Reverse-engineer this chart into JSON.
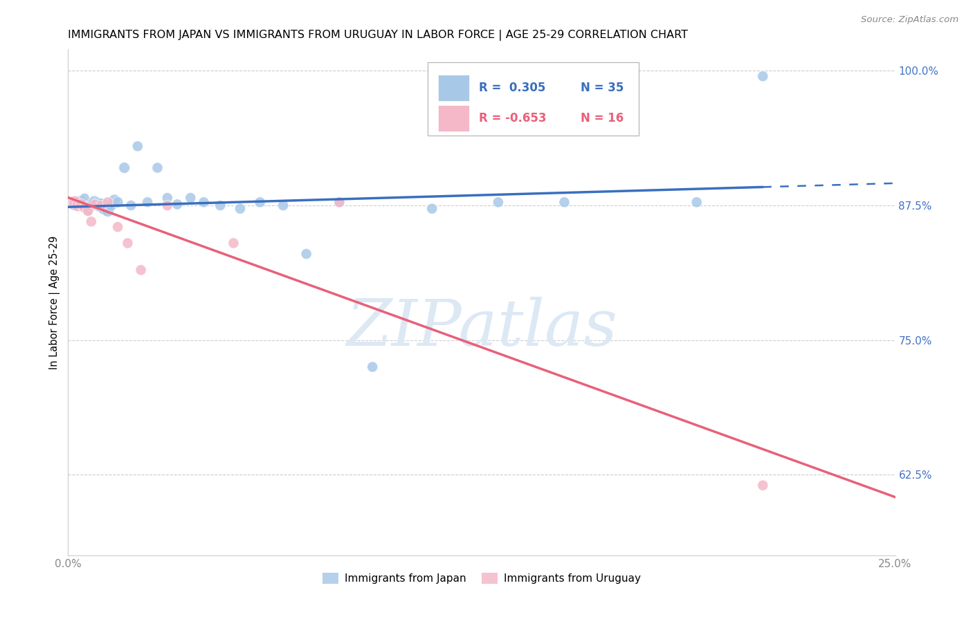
{
  "title": "IMMIGRANTS FROM JAPAN VS IMMIGRANTS FROM URUGUAY IN LABOR FORCE | AGE 25-29 CORRELATION CHART",
  "source_text": "Source: ZipAtlas.com",
  "ylabel": "In Labor Force | Age 25-29",
  "xlim": [
    0.0,
    0.25
  ],
  "ylim": [
    0.55,
    1.02
  ],
  "yticks": [
    0.625,
    0.75,
    0.875,
    1.0
  ],
  "ytick_labels": [
    "62.5%",
    "75.0%",
    "87.5%",
    "100.0%"
  ],
  "xtick_positions": [
    0.0,
    0.25
  ],
  "xtick_labels": [
    "0.0%",
    "25.0%"
  ],
  "watermark": "ZIPatlas",
  "japan_x": [
    0.002,
    0.003,
    0.004,
    0.005,
    0.006,
    0.007,
    0.008,
    0.009,
    0.01,
    0.011,
    0.012,
    0.013,
    0.014,
    0.015,
    0.017,
    0.019,
    0.021,
    0.024,
    0.027,
    0.03,
    0.033,
    0.037,
    0.041,
    0.046,
    0.052,
    0.058,
    0.065,
    0.072,
    0.082,
    0.092,
    0.11,
    0.13,
    0.15,
    0.19,
    0.21
  ],
  "japan_y": [
    0.875,
    0.878,
    0.88,
    0.882,
    0.87,
    0.875,
    0.878,
    0.876,
    0.875,
    0.872,
    0.87,
    0.875,
    0.88,
    0.878,
    0.91,
    0.875,
    0.93,
    0.878,
    0.91,
    0.882,
    0.876,
    0.882,
    0.878,
    0.875,
    0.872,
    0.878,
    0.875,
    0.83,
    0.878,
    0.725,
    0.872,
    0.878,
    0.878,
    0.878,
    0.995
  ],
  "japan_sizes": [
    120,
    100,
    100,
    100,
    120,
    150,
    180,
    200,
    220,
    180,
    160,
    140,
    140,
    130,
    130,
    120,
    120,
    120,
    120,
    120,
    120,
    120,
    120,
    120,
    120,
    120,
    120,
    120,
    120,
    120,
    120,
    120,
    120,
    120,
    120
  ],
  "uruguay_x": [
    0.002,
    0.003,
    0.004,
    0.005,
    0.006,
    0.007,
    0.008,
    0.01,
    0.012,
    0.015,
    0.018,
    0.022,
    0.03,
    0.05,
    0.082,
    0.21
  ],
  "uruguay_y": [
    0.878,
    0.875,
    0.876,
    0.873,
    0.87,
    0.86,
    0.876,
    0.875,
    0.878,
    0.855,
    0.84,
    0.815,
    0.875,
    0.84,
    0.878,
    0.615
  ],
  "uruguay_sizes": [
    180,
    160,
    140,
    130,
    120,
    120,
    120,
    120,
    120,
    120,
    120,
    120,
    120,
    120,
    120,
    120
  ],
  "japan_color": "#a8c8e8",
  "uruguay_color": "#f4b8c8",
  "japan_line_color": "#3a6fbf",
  "uruguay_line_color": "#e8607a",
  "background_color": "#ffffff",
  "grid_color": "#cccccc",
  "title_fontsize": 11.5,
  "tick_label_color_right": "#4472c4",
  "watermark_color": "#dde8f5",
  "legend_japan_r": "R =  0.305",
  "legend_japan_n": "N = 35",
  "legend_uruguay_r": "R = -0.653",
  "legend_uruguay_n": "N = 16",
  "bottom_legend_japan": "Immigrants from Japan",
  "bottom_legend_uruguay": "Immigrants from Uruguay"
}
